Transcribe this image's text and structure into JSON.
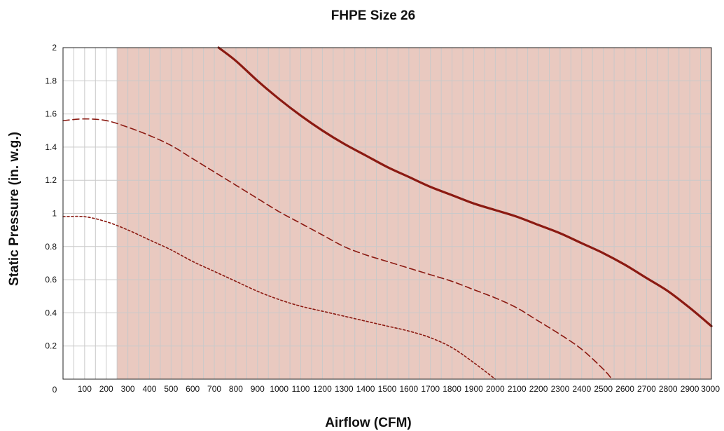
{
  "chart_data": {
    "type": "area",
    "title": "FHPE Size 26",
    "xlabel": "Airflow (CFM)",
    "ylabel": "Static Pressure (in. w.g.)",
    "xlim": [
      0,
      3000
    ],
    "ylim": [
      0,
      2
    ],
    "x_ticks": [
      "0",
      "100",
      "200",
      "300",
      "400",
      "500",
      "600",
      "700",
      "800",
      "900",
      "1000",
      "1100",
      "1200",
      "1300",
      "1400",
      "1500",
      "1600",
      "1700",
      "1800",
      "1900",
      "2000",
      "2100",
      "2200",
      "2300",
      "2400",
      "2500",
      "2600",
      "2700",
      "2800",
      "2900",
      "3000"
    ],
    "y_ticks": [
      "0.2",
      "0.4",
      "0.6",
      "0.8",
      "1",
      "1.2",
      "1.4",
      "1.6",
      "1.8",
      "2"
    ],
    "grid": true,
    "minor_x_grid_step": 50,
    "shaded_region": {
      "x_start": 250,
      "x_end": 3000,
      "color": "#e9c9c0"
    },
    "series": [
      {
        "style": "solid",
        "color": "#8b1a12",
        "x": [
          720,
          800,
          900,
          1000,
          1100,
          1200,
          1300,
          1400,
          1500,
          1600,
          1700,
          1800,
          1900,
          2000,
          2100,
          2200,
          2300,
          2400,
          2500,
          2600,
          2700,
          2800,
          2900,
          3000
        ],
        "y": [
          2.0,
          1.92,
          1.8,
          1.69,
          1.59,
          1.5,
          1.42,
          1.35,
          1.28,
          1.22,
          1.16,
          1.11,
          1.06,
          1.02,
          0.98,
          0.93,
          0.88,
          0.82,
          0.76,
          0.69,
          0.61,
          0.53,
          0.43,
          0.32
        ]
      },
      {
        "style": "dashed",
        "color": "#8b1a12",
        "x": [
          0,
          100,
          200,
          300,
          400,
          500,
          600,
          700,
          800,
          900,
          1000,
          1100,
          1200,
          1300,
          1400,
          1500,
          1600,
          1700,
          1800,
          1900,
          2000,
          2100,
          2200,
          2300,
          2400,
          2500,
          2540
        ],
        "y": [
          1.56,
          1.57,
          1.56,
          1.52,
          1.47,
          1.41,
          1.33,
          1.25,
          1.17,
          1.09,
          1.01,
          0.94,
          0.87,
          0.8,
          0.75,
          0.71,
          0.67,
          0.63,
          0.59,
          0.54,
          0.49,
          0.43,
          0.35,
          0.27,
          0.18,
          0.06,
          0.0
        ]
      },
      {
        "style": "dotted",
        "color": "#8b1a12",
        "x": [
          0,
          100,
          200,
          300,
          400,
          500,
          600,
          700,
          800,
          900,
          1000,
          1100,
          1200,
          1300,
          1400,
          1500,
          1600,
          1700,
          1800,
          1900,
          2000
        ],
        "y": [
          0.98,
          0.98,
          0.95,
          0.9,
          0.84,
          0.78,
          0.71,
          0.65,
          0.59,
          0.53,
          0.48,
          0.44,
          0.41,
          0.38,
          0.35,
          0.32,
          0.29,
          0.25,
          0.19,
          0.1,
          0.0
        ]
      }
    ]
  }
}
